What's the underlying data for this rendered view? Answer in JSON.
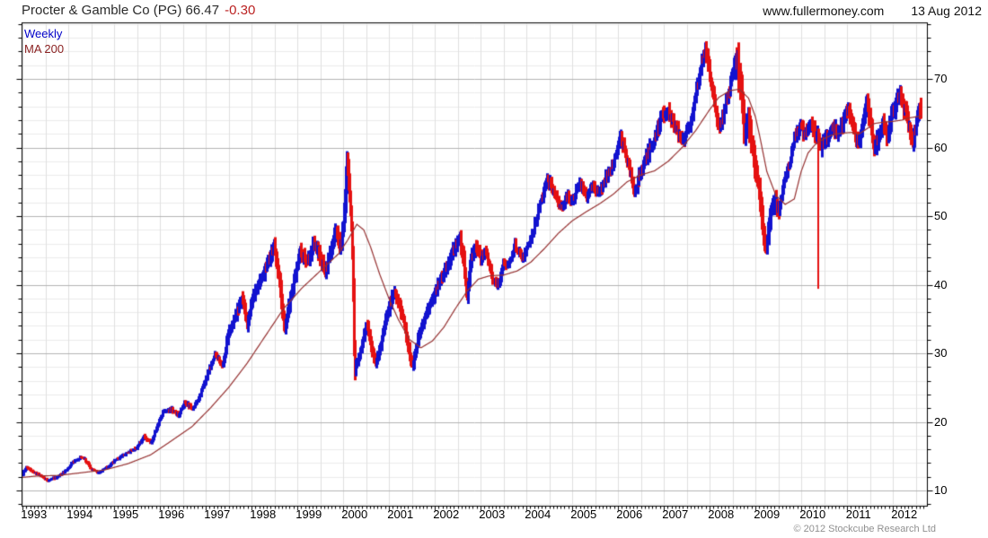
{
  "header": {
    "title": "Procter & Gamble Co (PG) 66.47",
    "change": "-0.30",
    "site": "www.fullermoney.com",
    "date": "13 Aug 2012"
  },
  "legend": {
    "weekly": "Weekly",
    "ma": "MA 200"
  },
  "footer": {
    "copyright": "© 2012 Stockcube Research Ltd"
  },
  "colors": {
    "bar_up": "#1212cf",
    "bar_down": "#e51111",
    "ma_line": "#963232",
    "grid_minor": "#ececec",
    "grid_vertical": "#e0e0e0",
    "grid_major": "#b4b4b4",
    "axis": "#000000",
    "title_text": "#2b2b2b",
    "change_text": "#bb2222",
    "copyright_text": "#909090"
  },
  "chart_data": {
    "type": "bar",
    "title": "Procter & Gamble Co (PG) weekly price with 200-period moving average",
    "last_price": 66.47,
    "last_change": -0.3,
    "x_axis": {
      "ticks": [
        "1993",
        "1994",
        "1995",
        "1996",
        "1997",
        "1998",
        "1999",
        "2000",
        "2001",
        "2002",
        "2003",
        "2004",
        "2005",
        "2006",
        "2007",
        "2008",
        "2009",
        "2010",
        "2011",
        "2012"
      ],
      "range": [
        1992.98,
        2012.62
      ]
    },
    "y_axis": {
      "ticks": [
        10,
        20,
        30,
        40,
        50,
        60,
        70
      ],
      "range": [
        7.8,
        78.2
      ],
      "minor_step": 2
    },
    "series": [
      {
        "name": "Weekly",
        "style": "hl-bars",
        "anchors": [
          [
            1992.98,
            12.2
          ],
          [
            1993.08,
            13.4
          ],
          [
            1993.3,
            12.4
          ],
          [
            1993.55,
            11.5
          ],
          [
            1993.75,
            11.9
          ],
          [
            1993.95,
            12.9
          ],
          [
            1994.1,
            14.2
          ],
          [
            1994.3,
            14.9
          ],
          [
            1994.5,
            13.2
          ],
          [
            1994.65,
            12.6
          ],
          [
            1994.85,
            13.4
          ],
          [
            1995.0,
            14.3
          ],
          [
            1995.25,
            15.4
          ],
          [
            1995.5,
            16.3
          ],
          [
            1995.65,
            17.9
          ],
          [
            1995.8,
            16.9
          ],
          [
            1995.95,
            19.5
          ],
          [
            1996.05,
            21.3
          ],
          [
            1996.25,
            21.8
          ],
          [
            1996.4,
            20.9
          ],
          [
            1996.55,
            22.9
          ],
          [
            1996.7,
            21.9
          ],
          [
            1996.85,
            23.5
          ],
          [
            1997.0,
            26.3
          ],
          [
            1997.2,
            30.0
          ],
          [
            1997.35,
            28.2
          ],
          [
            1997.5,
            33.0
          ],
          [
            1997.65,
            35.5
          ],
          [
            1997.8,
            38.3
          ],
          [
            1997.9,
            34.3
          ],
          [
            1998.05,
            38.8
          ],
          [
            1998.2,
            41.0
          ],
          [
            1998.35,
            43.5
          ],
          [
            1998.5,
            45.8
          ],
          [
            1998.62,
            40.0
          ],
          [
            1998.72,
            33.5
          ],
          [
            1998.82,
            37.0
          ],
          [
            1998.92,
            40.5
          ],
          [
            1999.05,
            44.8
          ],
          [
            1999.2,
            43.0
          ],
          [
            1999.35,
            46.3
          ],
          [
            1999.5,
            44.0
          ],
          [
            1999.62,
            42.0
          ],
          [
            1999.75,
            45.5
          ],
          [
            1999.85,
            47.8
          ],
          [
            1999.95,
            45.0
          ],
          [
            2000.04,
            52.5
          ],
          [
            2000.08,
            58.3
          ],
          [
            2000.13,
            54.0
          ],
          [
            2000.17,
            49.0
          ],
          [
            2000.2,
            43.0
          ],
          [
            2000.24,
            27.5
          ],
          [
            2000.32,
            29.0
          ],
          [
            2000.42,
            32.0
          ],
          [
            2000.52,
            34.3
          ],
          [
            2000.62,
            31.0
          ],
          [
            2000.7,
            28.6
          ],
          [
            2000.8,
            30.5
          ],
          [
            2000.9,
            34.0
          ],
          [
            2001.0,
            36.8
          ],
          [
            2001.1,
            38.8
          ],
          [
            2001.22,
            37.0
          ],
          [
            2001.32,
            34.5
          ],
          [
            2001.42,
            30.5
          ],
          [
            2001.52,
            28.2
          ],
          [
            2001.65,
            32.5
          ],
          [
            2001.8,
            35.5
          ],
          [
            2001.95,
            38.0
          ],
          [
            2002.1,
            40.3
          ],
          [
            2002.25,
            42.5
          ],
          [
            2002.4,
            45.0
          ],
          [
            2002.55,
            46.8
          ],
          [
            2002.64,
            43.0
          ],
          [
            2002.7,
            38.2
          ],
          [
            2002.8,
            44.0
          ],
          [
            2002.9,
            45.5
          ],
          [
            2003.0,
            43.8
          ],
          [
            2003.12,
            44.8
          ],
          [
            2003.25,
            40.8
          ],
          [
            2003.38,
            40.0
          ],
          [
            2003.5,
            43.0
          ],
          [
            2003.62,
            42.8
          ],
          [
            2003.75,
            45.8
          ],
          [
            2003.9,
            43.9
          ],
          [
            2004.0,
            45.2
          ],
          [
            2004.15,
            48.0
          ],
          [
            2004.3,
            52.0
          ],
          [
            2004.45,
            55.8
          ],
          [
            2004.6,
            53.5
          ],
          [
            2004.75,
            51.2
          ],
          [
            2004.9,
            53.0
          ],
          [
            2005.0,
            52.3
          ],
          [
            2005.15,
            55.0
          ],
          [
            2005.3,
            53.0
          ],
          [
            2005.45,
            54.5
          ],
          [
            2005.6,
            53.3
          ],
          [
            2005.75,
            55.8
          ],
          [
            2005.9,
            57.5
          ],
          [
            2006.04,
            61.8
          ],
          [
            2006.15,
            59.5
          ],
          [
            2006.35,
            53.3
          ],
          [
            2006.5,
            56.5
          ],
          [
            2006.65,
            59.0
          ],
          [
            2006.8,
            61.5
          ],
          [
            2006.95,
            64.5
          ],
          [
            2007.08,
            65.5
          ],
          [
            2007.2,
            63.5
          ],
          [
            2007.32,
            62.0
          ],
          [
            2007.45,
            61.0
          ],
          [
            2007.6,
            64.0
          ],
          [
            2007.72,
            68.5
          ],
          [
            2007.82,
            72.5
          ],
          [
            2007.9,
            74.8
          ],
          [
            2008.0,
            70.5
          ],
          [
            2008.1,
            66.5
          ],
          [
            2008.2,
            62.5
          ],
          [
            2008.33,
            66.0
          ],
          [
            2008.46,
            69.5
          ],
          [
            2008.6,
            72.8
          ],
          [
            2008.68,
            69.0
          ],
          [
            2008.76,
            61.5
          ],
          [
            2008.84,
            64.5
          ],
          [
            2008.92,
            60.0
          ],
          [
            2009.0,
            56.5
          ],
          [
            2009.08,
            54.0
          ],
          [
            2009.16,
            47.5
          ],
          [
            2009.22,
            45.0
          ],
          [
            2009.32,
            50.5
          ],
          [
            2009.42,
            52.0
          ],
          [
            2009.52,
            51.0
          ],
          [
            2009.62,
            54.5
          ],
          [
            2009.74,
            57.5
          ],
          [
            2009.86,
            61.5
          ],
          [
            2009.96,
            63.0
          ],
          [
            2010.1,
            62.0
          ],
          [
            2010.2,
            63.5
          ],
          [
            2010.3,
            62.0
          ],
          [
            2010.44,
            60.3
          ],
          [
            2010.56,
            61.5
          ],
          [
            2010.7,
            63.0
          ],
          [
            2010.8,
            62.0
          ],
          [
            2010.92,
            64.0
          ],
          [
            2011.02,
            65.3
          ],
          [
            2011.14,
            62.5
          ],
          [
            2011.24,
            60.5
          ],
          [
            2011.34,
            64.0
          ],
          [
            2011.44,
            66.8
          ],
          [
            2011.52,
            63.5
          ],
          [
            2011.6,
            59.5
          ],
          [
            2011.7,
            62.0
          ],
          [
            2011.8,
            64.0
          ],
          [
            2011.88,
            61.5
          ],
          [
            2011.96,
            64.5
          ],
          [
            2012.06,
            66.5
          ],
          [
            2012.14,
            67.5
          ],
          [
            2012.24,
            66.0
          ],
          [
            2012.32,
            63.5
          ],
          [
            2012.42,
            60.2
          ],
          [
            2012.52,
            63.5
          ],
          [
            2012.62,
            66.5
          ]
        ]
      },
      {
        "name": "MA 200",
        "style": "line",
        "anchors": [
          [
            1992.98,
            11.9
          ],
          [
            1993.3,
            12.1
          ],
          [
            1993.8,
            12.2
          ],
          [
            1994.3,
            12.6
          ],
          [
            1994.8,
            13.0
          ],
          [
            1995.3,
            13.9
          ],
          [
            1995.8,
            15.2
          ],
          [
            1996.2,
            17.0
          ],
          [
            1996.7,
            19.3
          ],
          [
            1997.1,
            22.0
          ],
          [
            1997.5,
            25.0
          ],
          [
            1997.9,
            28.5
          ],
          [
            1998.3,
            32.5
          ],
          [
            1998.7,
            36.5
          ],
          [
            1999.1,
            39.5
          ],
          [
            1999.5,
            42.0
          ],
          [
            1999.9,
            44.5
          ],
          [
            2000.1,
            46.5
          ],
          [
            2000.3,
            48.8
          ],
          [
            2000.45,
            48.0
          ],
          [
            2000.6,
            45.5
          ],
          [
            2000.8,
            41.5
          ],
          [
            2001.0,
            38.0
          ],
          [
            2001.2,
            35.0
          ],
          [
            2001.45,
            32.0
          ],
          [
            2001.7,
            30.8
          ],
          [
            2001.95,
            31.8
          ],
          [
            2002.2,
            33.8
          ],
          [
            2002.45,
            36.5
          ],
          [
            2002.7,
            39.0
          ],
          [
            2002.95,
            40.8
          ],
          [
            2003.2,
            41.3
          ],
          [
            2003.5,
            41.4
          ],
          [
            2003.8,
            42.0
          ],
          [
            2004.1,
            43.3
          ],
          [
            2004.4,
            45.3
          ],
          [
            2004.7,
            47.5
          ],
          [
            2005.0,
            49.3
          ],
          [
            2005.3,
            50.6
          ],
          [
            2005.6,
            51.8
          ],
          [
            2005.9,
            53.2
          ],
          [
            2006.2,
            55.0
          ],
          [
            2006.5,
            56.0
          ],
          [
            2006.8,
            56.6
          ],
          [
            2007.1,
            58.0
          ],
          [
            2007.4,
            60.0
          ],
          [
            2007.7,
            62.5
          ],
          [
            2008.0,
            65.5
          ],
          [
            2008.2,
            67.3
          ],
          [
            2008.45,
            68.3
          ],
          [
            2008.65,
            68.5
          ],
          [
            2008.85,
            67.2
          ],
          [
            2009.0,
            64.5
          ],
          [
            2009.1,
            61.5
          ],
          [
            2009.25,
            56.5
          ],
          [
            2009.45,
            53.0
          ],
          [
            2009.65,
            51.7
          ],
          [
            2009.85,
            52.5
          ],
          [
            2010.0,
            56.5
          ],
          [
            2010.15,
            59.2
          ],
          [
            2010.3,
            60.4
          ],
          [
            2010.5,
            61.3
          ],
          [
            2010.7,
            61.9
          ],
          [
            2010.9,
            62.1
          ],
          [
            2011.1,
            62.2
          ],
          [
            2011.25,
            61.9
          ],
          [
            2011.45,
            62.8
          ],
          [
            2011.6,
            63.5
          ],
          [
            2011.8,
            63.7
          ],
          [
            2012.0,
            63.8
          ],
          [
            2012.2,
            64.0
          ],
          [
            2012.35,
            64.3
          ],
          [
            2012.62,
            64.6
          ]
        ]
      }
    ],
    "events": {
      "flash_crash_spike": {
        "t": 2010.36,
        "top": 62.0,
        "low": 39.4
      }
    },
    "volatile_zones": [
      {
        "from": 1997.4,
        "to": 2003.0,
        "mult": 1.7
      },
      {
        "from": 2008.55,
        "to": 2009.55,
        "mult": 1.9
      },
      {
        "from": 2010.1,
        "to": 2012.62,
        "mult": 1.25
      }
    ],
    "bar_noise": {
      "close_wiggle_pct": 1.8,
      "range_base_pct": 0.5,
      "range_rand_pct": 1.1
    },
    "legend_position": "top-left",
    "grid": true
  }
}
